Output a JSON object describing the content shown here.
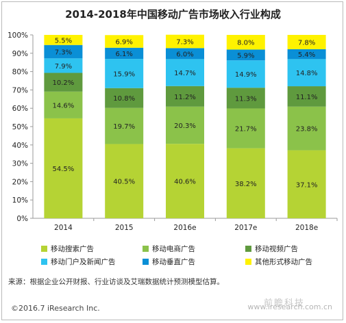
{
  "chart_data": {
    "type": "bar",
    "stacked": true,
    "title": "2014-2018年中国移动广告市场收入行业构成",
    "categories": [
      "2014",
      "2015",
      "2016e",
      "2017e",
      "2018e"
    ],
    "ylim": [
      0,
      100
    ],
    "yticks": [
      "0%",
      "10%",
      "20%",
      "30%",
      "40%",
      "50%",
      "60%",
      "70%",
      "80%",
      "90%",
      "100%"
    ],
    "grid": false,
    "legend_position": "bottom",
    "series": [
      {
        "name": "移动搜索广告",
        "color": "#b5d334",
        "values": [
          54.5,
          40.5,
          40.6,
          38.2,
          37.1
        ],
        "labels": [
          "54.5%",
          "40.5%",
          "40.6%",
          "38.2%",
          "37.1%"
        ]
      },
      {
        "name": "移动电商广告",
        "color": "#8bc24a",
        "values": [
          14.6,
          19.7,
          20.3,
          21.7,
          23.8
        ],
        "labels": [
          "14.6%",
          "19.7%",
          "20.3%",
          "21.7%",
          "23.8%"
        ]
      },
      {
        "name": "移动视频广告",
        "color": "#5f9a3e",
        "values": [
          10.2,
          10.8,
          11.2,
          11.3,
          11.1
        ],
        "labels": [
          "10.2%",
          "10.8%",
          "11.2%",
          "11.3%",
          "11.1%"
        ]
      },
      {
        "name": "移动门户及新闻广告",
        "color": "#2ec3f0",
        "values": [
          7.9,
          15.9,
          14.7,
          14.9,
          14.8
        ],
        "labels": [
          "7.9%",
          "15.9%",
          "14.7%",
          "14.9%",
          "14.8%"
        ]
      },
      {
        "name": "移动垂直广告",
        "color": "#0a8fd6",
        "values": [
          7.3,
          6.1,
          6.0,
          5.9,
          5.4
        ],
        "labels": [
          "7.3%",
          "6.1%",
          "6.0%",
          "5.9%",
          "5.4%"
        ]
      },
      {
        "name": "其他形式移动广告",
        "color": "#fff200",
        "values": [
          5.5,
          6.9,
          7.3,
          8.0,
          7.8
        ],
        "labels": [
          "5.5%",
          "6.9%",
          "7.3%",
          "8.0%",
          "7.8%"
        ]
      }
    ]
  },
  "footer": {
    "source": "来源：根据企业公开财报、行业访谈及艾瑞数据统计预测模型估算。",
    "copyright": "©2016.7 iResearch Inc.",
    "watermark_cn": "前瞻科技",
    "watermark_url": "www.iresearch.com.cn"
  }
}
